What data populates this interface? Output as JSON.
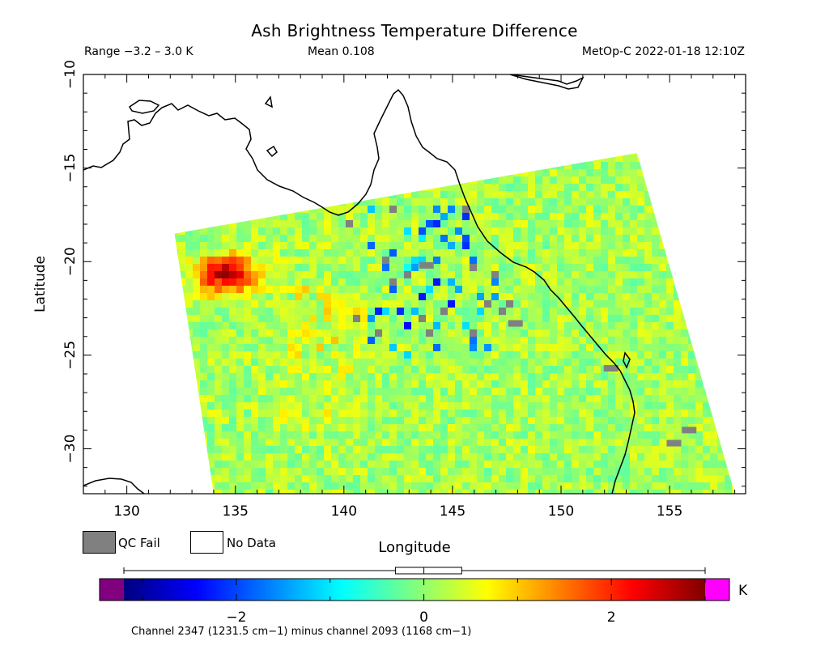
{
  "header": {
    "title": "Ash Brightness Temperature Difference",
    "range_text": "Range −3.2 – 3.0 K",
    "mean_text": "Mean 0.108",
    "satellite_text": "MetOp-C 2022-01-18 12:10Z"
  },
  "legend": {
    "qc_fail_label": "QC Fail",
    "no_data_label": "No Data",
    "qc_fail_color": "#808080",
    "no_data_color": "#ffffff"
  },
  "colorbar": {
    "unit": "K",
    "ticks": [
      -2,
      0,
      2
    ],
    "tick_labels": [
      "−2",
      "0",
      "2"
    ],
    "vmin": -3.2,
    "vmax": 3.0,
    "under_color": "#800080",
    "over_color": "#ff00ff",
    "stops": [
      "#00007f",
      "#0000ff",
      "#007fff",
      "#00ffff",
      "#7fff7f",
      "#ffff00",
      "#ff7f00",
      "#ff0000",
      "#7f0000"
    ],
    "box_whisker": {
      "min": -3.2,
      "q1": -0.2,
      "median": 0.0,
      "q3": 0.3,
      "max": 3.0
    }
  },
  "footnote": "Channel 2347 (1231.5 cm−1) minus channel 2093 (1168 cm−1)",
  "chart_data": {
    "type": "heatmap",
    "title": "Ash Brightness Temperature Difference",
    "xlabel": "Longitude",
    "ylabel": "Latitude",
    "xlim": [
      128,
      158.5
    ],
    "ylim": [
      -32.4,
      -10
    ],
    "xticks": [
      130,
      135,
      140,
      145,
      150,
      155
    ],
    "yticks": [
      -10,
      -15,
      -20,
      -25,
      -30
    ],
    "xtick_labels": [
      "130",
      "135",
      "140",
      "145",
      "150",
      "155"
    ],
    "ytick_labels": [
      "−10",
      "−15",
      "−20",
      "−25",
      "−30"
    ],
    "swath_corners": [
      [
        132.2,
        -18.5
      ],
      [
        153.5,
        -14.2
      ],
      [
        158.0,
        -32.4
      ],
      [
        134.0,
        -32.4
      ]
    ],
    "hotspot": {
      "lon": 134.5,
      "lat": -20.5,
      "value": 2.5
    },
    "grid": false,
    "legend_position": "bottom-left"
  }
}
